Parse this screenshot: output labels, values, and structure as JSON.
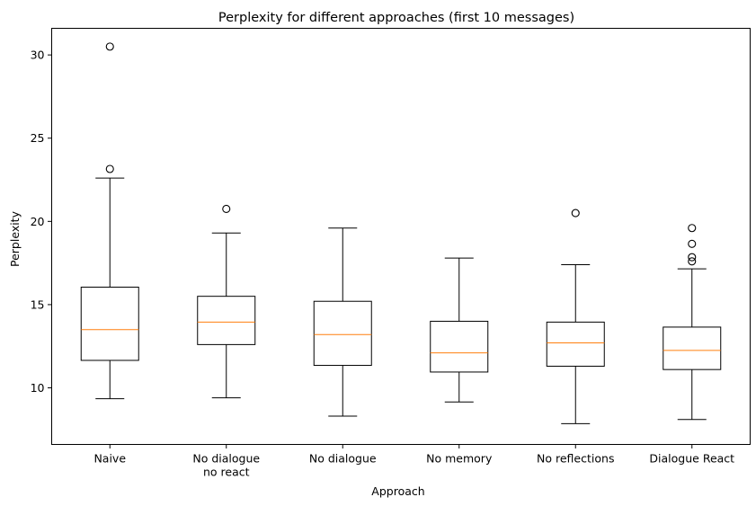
{
  "chart_data": {
    "type": "box",
    "title": "Perplexity for different approaches (first 10 messages)",
    "xlabel": "Approach",
    "ylabel": "Perplexity",
    "ylim": [
      6.6,
      31.6
    ],
    "yticks": [
      10,
      15,
      20,
      25,
      30
    ],
    "grid": false,
    "categories": [
      "Naive",
      "No dialogue\nno react",
      "No dialogue",
      "No memory",
      "No reflections",
      "Dialogue React"
    ],
    "boxes": [
      {
        "category": "Naive",
        "whisker_low": 9.35,
        "q1": 11.65,
        "median": 13.5,
        "q3": 16.05,
        "whisker_high": 22.6,
        "outliers": [
          23.15,
          30.5
        ]
      },
      {
        "category": "No dialogue\nno react",
        "whisker_low": 9.4,
        "q1": 12.6,
        "median": 13.95,
        "q3": 15.5,
        "whisker_high": 19.3,
        "outliers": [
          20.75
        ]
      },
      {
        "category": "No dialogue",
        "whisker_low": 8.3,
        "q1": 11.35,
        "median": 13.2,
        "q3": 15.2,
        "whisker_high": 19.6,
        "outliers": []
      },
      {
        "category": "No memory",
        "whisker_low": 9.15,
        "q1": 10.95,
        "median": 12.1,
        "q3": 14.0,
        "whisker_high": 17.8,
        "outliers": []
      },
      {
        "category": "No reflections",
        "whisker_low": 7.85,
        "q1": 11.3,
        "median": 12.7,
        "q3": 13.95,
        "whisker_high": 17.4,
        "outliers": [
          20.5
        ]
      },
      {
        "category": "Dialogue React",
        "whisker_low": 8.1,
        "q1": 11.1,
        "median": 12.25,
        "q3": 13.65,
        "whisker_high": 17.15,
        "outliers": [
          17.6,
          17.85,
          18.65,
          19.6
        ]
      }
    ],
    "colors": {
      "box": "#000000",
      "median": "#ff7f0e",
      "outlier": "#000000"
    }
  }
}
